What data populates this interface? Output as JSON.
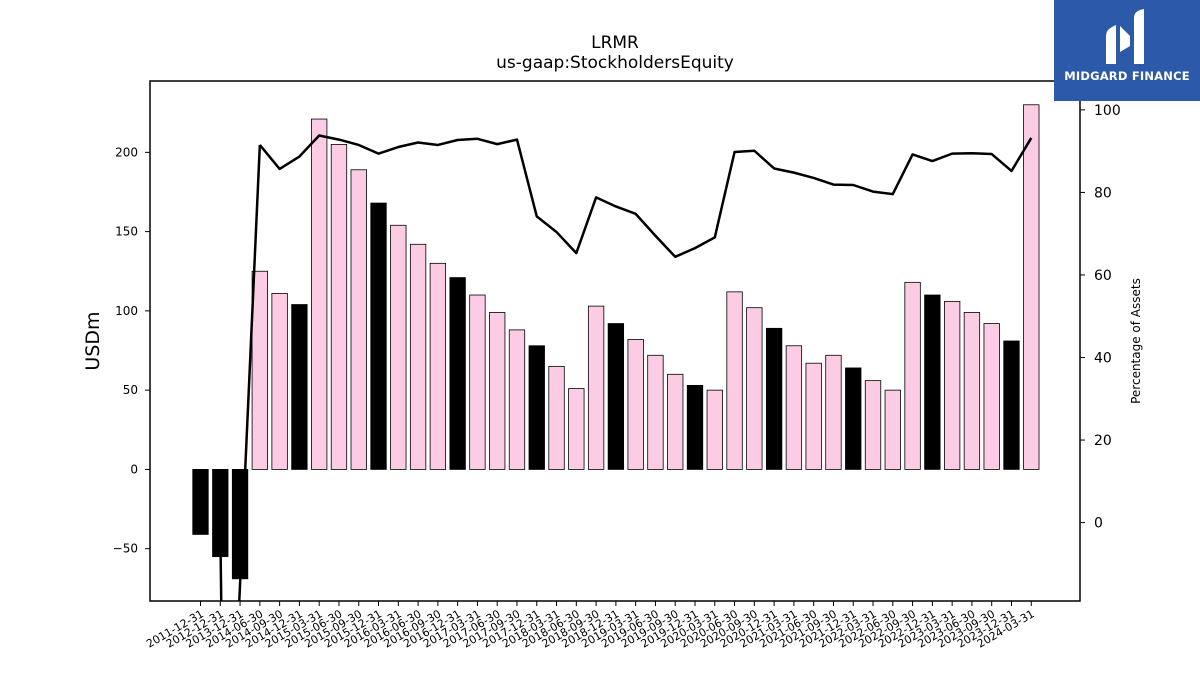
{
  "brand": {
    "name": "MIDGARD FINANCE",
    "bg_color": "#2c5aa8"
  },
  "chart_data": {
    "type": "bar",
    "title": "LRMR",
    "subtitle": "us-gaap:StockholdersEquity",
    "ylabel": "USDm",
    "y2label": "Percentage of Assets",
    "ylim": [
      -83,
      245
    ],
    "y2lim": [
      -19,
      107
    ],
    "yticks": [
      -50,
      0,
      50,
      100,
      150,
      200
    ],
    "y2ticks": [
      0,
      20,
      40,
      60,
      80,
      100
    ],
    "colors": {
      "annual_bar": "#000000",
      "quarter_bar": "#fbcce3",
      "bar_edge": "#000000",
      "line": "#000000"
    },
    "categories": [
      "2011-12-31",
      "2012-12-31",
      "2013-12-31",
      "2014-06-30",
      "2014-09-30",
      "2014-12-31",
      "2015-03-31",
      "2015-06-30",
      "2015-09-30",
      "2015-12-31",
      "2016-03-31",
      "2016-06-30",
      "2016-09-30",
      "2016-12-31",
      "2017-03-31",
      "2017-06-30",
      "2017-09-30",
      "2017-12-31",
      "2018-03-31",
      "2018-06-30",
      "2018-09-30",
      "2018-12-31",
      "2019-03-31",
      "2019-06-30",
      "2019-09-30",
      "2019-12-31",
      "2020-03-31",
      "2020-06-30",
      "2020-09-30",
      "2020-12-31",
      "2021-03-31",
      "2021-06-30",
      "2021-09-30",
      "2021-12-31",
      "2022-03-31",
      "2022-06-30",
      "2022-09-30",
      "2022-12-31",
      "2023-03-31",
      "2023-06-30",
      "2023-09-30",
      "2023-12-31",
      "2024-03-31"
    ],
    "series": [
      {
        "values": [
          -41,
          -55,
          -69,
          125,
          111,
          104,
          221,
          205,
          189,
          168,
          154,
          142,
          130,
          121,
          110,
          99,
          88,
          78,
          65,
          51,
          103,
          92,
          82,
          72,
          60,
          53,
          50,
          112,
          102,
          89,
          78,
          67,
          72,
          64,
          56,
          50,
          118,
          110,
          106,
          99,
          92,
          81,
          230
        ],
        "annual": [
          true,
          true,
          true,
          false,
          false,
          true,
          false,
          false,
          false,
          true,
          false,
          false,
          false,
          true,
          false,
          false,
          false,
          true,
          false,
          false,
          false,
          true,
          false,
          false,
          false,
          true,
          false,
          false,
          false,
          true,
          false,
          false,
          false,
          true,
          false,
          false,
          false,
          true,
          false,
          false,
          false,
          true,
          false
        ]
      },
      {
        "axis": "y2",
        "values": [
          null,
          0,
          null,
          91.5,
          85.7,
          88.7,
          93.8,
          92.8,
          91.5,
          89.4,
          91,
          92.1,
          91.5,
          92.7,
          93,
          91.7,
          92.8,
          74.2,
          70.4,
          65.3,
          78.8,
          76.6,
          74.8,
          69.5,
          64.4,
          66.5,
          69.1,
          89.8,
          90.1,
          85.8,
          84.8,
          83.5,
          81.9,
          81.8,
          80.2,
          79.6,
          89.2,
          87.6,
          89.4,
          89.5,
          89.3,
          85.2,
          93.2
        ]
      }
    ]
  }
}
